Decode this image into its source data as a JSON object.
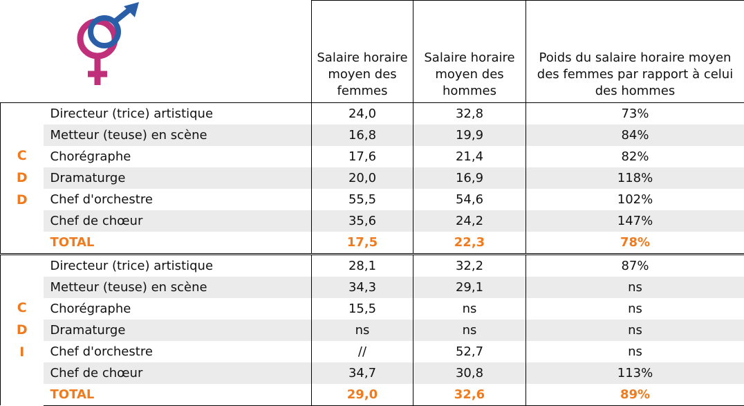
{
  "header": {
    "columns": [
      "Salaire horaire moyen des femmes",
      "Salaire horaire moyen des hommes",
      "Poids du salaire horaire moyen des femmes par rapport à celui des hommes"
    ]
  },
  "groups": [
    {
      "letters": [
        "C",
        "D",
        "D"
      ],
      "rows": [
        [
          "Directeur (trice) artistique",
          "24,0",
          "32,8",
          "73%"
        ],
        [
          "Metteur (teuse) en scène",
          "16,8",
          "19,9",
          "84%"
        ],
        [
          "Chorégraphe",
          "17,6",
          "21,4",
          "82%"
        ],
        [
          "Dramaturge",
          "20,0",
          "16,9",
          "118%"
        ],
        [
          "Chef d'orchestre",
          "55,5",
          "54,6",
          "102%"
        ],
        [
          "Chef de chœur",
          "35,6",
          "24,2",
          "147%"
        ]
      ],
      "total": [
        "TOTAL",
        "17,5",
        "22,3",
        "78%"
      ]
    },
    {
      "letters": [
        "C",
        "D",
        "I"
      ],
      "rows": [
        [
          "Directeur (trice) artistique",
          "28,1",
          "32,2",
          "87%"
        ],
        [
          "Metteur (teuse) en scène",
          "34,3",
          "29,1",
          "ns"
        ],
        [
          "Chorégraphe",
          "15,5",
          "ns",
          "ns"
        ],
        [
          "Dramaturge",
          "ns",
          "ns",
          "ns"
        ],
        [
          "Chef d'orchestre",
          "//",
          "52,7",
          "ns"
        ],
        [
          "Chef de chœur",
          "34,7",
          "30,8",
          "113%"
        ]
      ],
      "total": [
        "TOTAL",
        "29,0",
        "32,6",
        "89%"
      ]
    }
  ]
}
